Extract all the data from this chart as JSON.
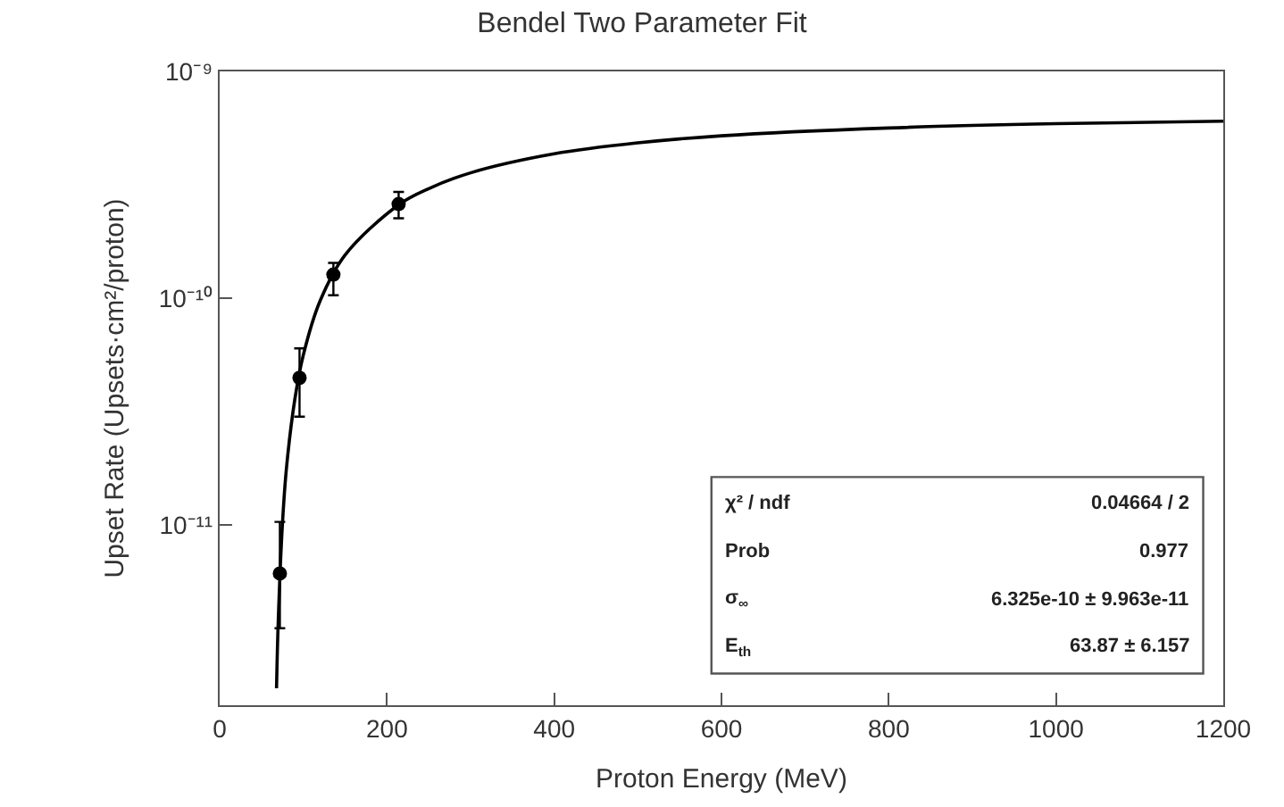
{
  "chart_data": {
    "type": "scatter",
    "title": "Bendel Two Parameter Fit",
    "xlabel": "Proton Energy (MeV)",
    "ylabel": "Upset Rate (Upsets·cm²/proton)",
    "xlim": [
      0,
      1200
    ],
    "xticks": [
      0,
      200,
      400,
      600,
      800,
      1000,
      1200
    ],
    "ylim": [
      1.6e-12,
      1e-09
    ],
    "yticks": [
      {
        "value": 1e-11,
        "label": "10⁻¹¹"
      },
      {
        "value": 1e-10,
        "label": "10⁻¹⁰"
      },
      {
        "value": 1e-09,
        "label": "10⁻⁹"
      }
    ],
    "log": "y",
    "marker": "circle",
    "series": [
      {
        "color": "#000000",
        "x": [
          72,
          95.5,
          136,
          214
        ],
        "values": [
          6.1e-12,
          4.45e-11,
          1.27e-10,
          2.6e-10
        ],
        "errors": [
          [
            3.5e-12,
            1.03e-11
          ],
          [
            3e-11,
            6e-11
          ],
          [
            1.03e-10,
            1.43e-10
          ],
          [
            2.25e-10,
            2.94e-10
          ]
        ]
      },
      {
        "type": "line",
        "color": "#000000",
        "line_style": "solid",
        "marker": "none",
        "x": [
          68,
          70,
          75,
          80,
          90,
          100,
          120,
          150,
          214,
          250,
          300,
          400,
          500,
          600,
          800,
          1000,
          1200
        ],
        "values": [
          1.9e-12,
          3.7e-12,
          1e-11,
          1.8e-11,
          3.6e-11,
          5.6e-11,
          9.7e-11,
          1.55e-10,
          2.58e-10,
          3.04e-10,
          3.57e-10,
          4.33e-10,
          4.84e-10,
          5.2e-10,
          5.63e-10,
          5.88e-10,
          6.03e-10
        ]
      }
    ],
    "annotations": [
      "χ² / ndf",
      "0.04664 / 2",
      "Prob",
      "0.977",
      "σ$_{∞}$",
      "6.325e-10 ± 9.963e-11",
      "E$_{th}$",
      "63.87 ± 6.157"
    ]
  }
}
